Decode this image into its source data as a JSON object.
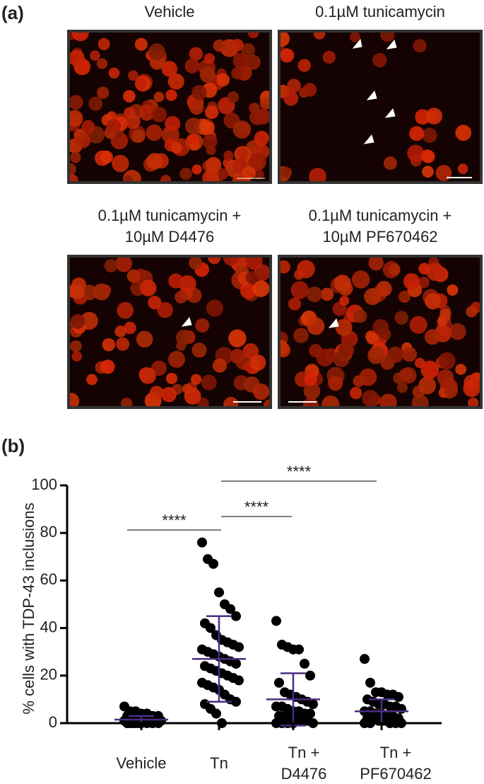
{
  "panel_a": {
    "label": "(a)",
    "panels": [
      {
        "title": [
          "Vehicle"
        ]
      },
      {
        "title": [
          "0.1µM tunicamycin"
        ]
      },
      {
        "title": [
          "0.1µM tunicamycin +",
          "10µM D4476"
        ]
      },
      {
        "title": [
          "0.1µM tunicamycin +",
          "10µM PF670462"
        ]
      }
    ]
  },
  "chart_data": {
    "type": "dot_plot",
    "label": "(b)",
    "y_label": "% cells with TDP-43 inclusions",
    "categories": [
      [
        "Vehicle"
      ],
      [
        "Tn"
      ],
      [
        "Tn +",
        "D4476"
      ],
      [
        "Tn +",
        "PF670462"
      ]
    ],
    "values": [
      [
        7,
        5,
        5,
        4,
        4,
        3,
        3,
        3,
        2,
        2,
        2,
        1,
        1,
        1,
        1,
        0,
        0,
        0,
        0,
        0,
        0,
        0,
        0,
        0
      ],
      [
        76,
        69,
        67,
        55,
        50,
        48,
        45,
        42,
        40,
        37,
        35,
        34,
        33,
        32,
        31,
        30,
        29,
        28,
        27,
        26,
        25,
        24,
        23,
        22,
        21,
        20,
        19,
        18,
        17,
        16,
        15,
        14,
        12,
        10,
        9,
        8,
        6,
        4,
        0
      ],
      [
        43,
        33,
        32,
        31,
        31,
        25,
        20,
        17,
        13,
        12,
        11,
        10,
        9,
        8,
        7,
        7,
        6,
        5,
        5,
        4,
        4,
        3,
        3,
        2,
        2,
        1,
        1,
        0,
        0,
        0,
        0,
        0
      ],
      [
        27,
        17,
        13,
        13,
        12,
        12,
        11,
        10,
        9,
        8,
        8,
        7,
        7,
        6,
        5,
        5,
        4,
        4,
        3,
        3,
        2,
        2,
        2,
        1,
        1,
        0,
        0,
        0,
        0,
        0
      ]
    ],
    "mean": [
      1.5,
      27,
      10,
      5
    ],
    "sd": [
      1.5,
      18,
      11,
      5
    ],
    "color": "#000000",
    "error_color": "#4b2e83",
    "significance": [
      "****",
      "****",
      "****"
    ],
    "ylim": [
      0,
      100
    ],
    "yticks": [
      0,
      20,
      40,
      60,
      80,
      100
    ]
  }
}
